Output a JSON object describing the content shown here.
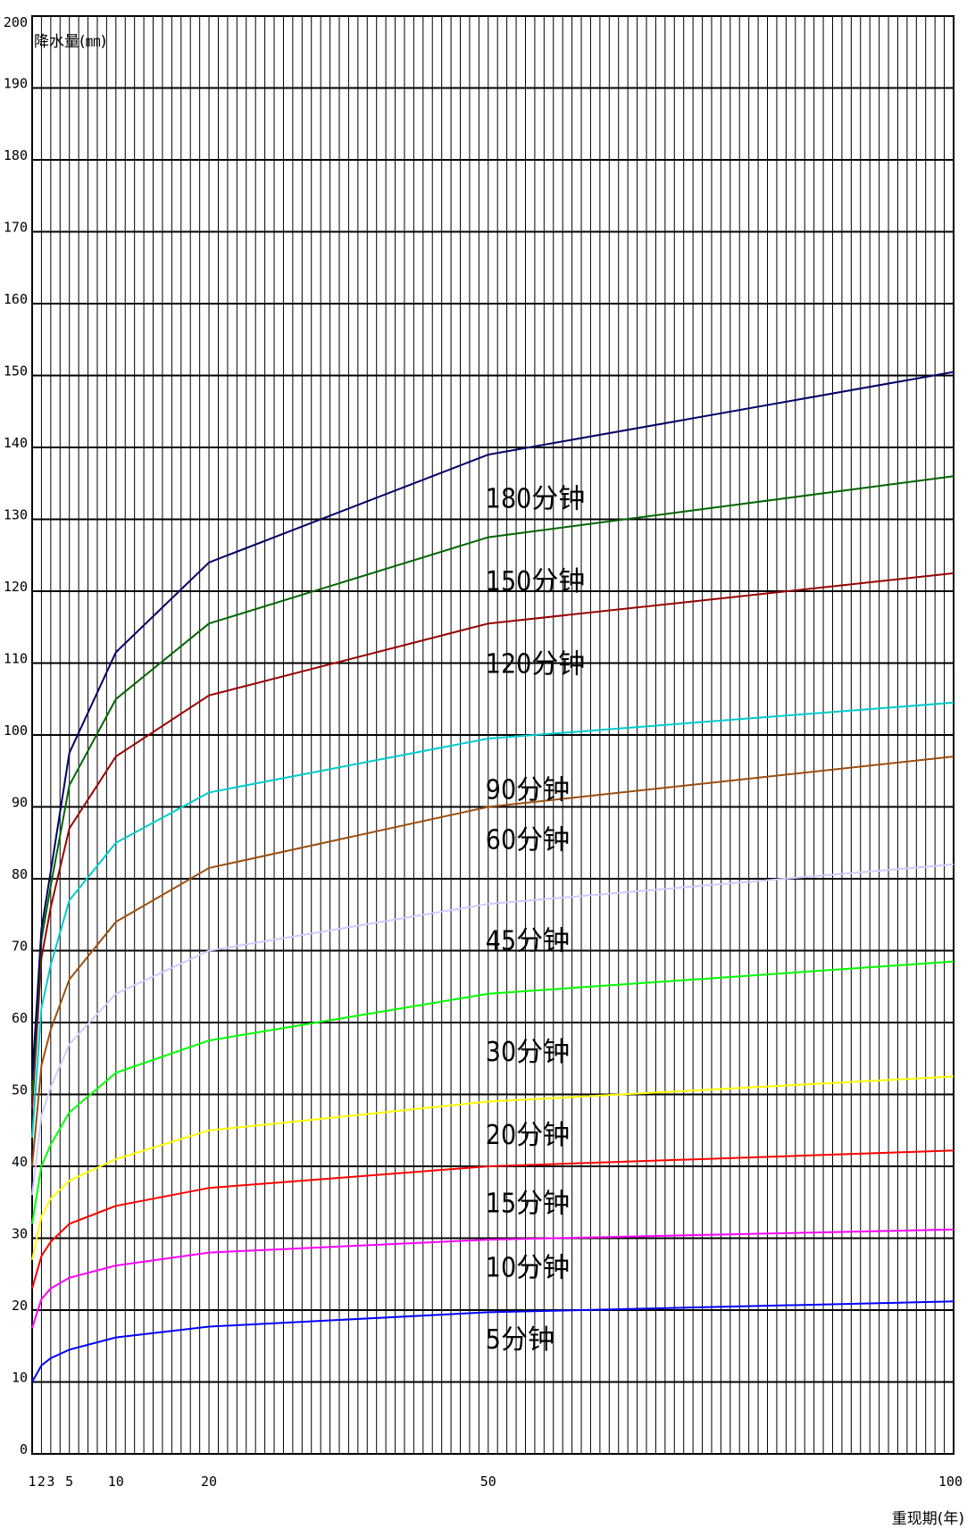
{
  "chart_data": {
    "type": "line",
    "title": "",
    "ylabel": "降水量(㎜)",
    "xlabel": "重现期(年)",
    "ylim": [
      0,
      200
    ],
    "xlim": [
      1,
      100
    ],
    "yticks": [
      "0",
      "10",
      "20",
      "30",
      "40",
      "50",
      "60",
      "70",
      "80",
      "90",
      "100",
      "110",
      "120",
      "130",
      "140",
      "150",
      "160",
      "170",
      "180",
      "190",
      "200"
    ],
    "xticks": [
      {
        "value": 1,
        "label": "1"
      },
      {
        "value": 2,
        "label": "2"
      },
      {
        "value": 3,
        "label": "3"
      },
      {
        "value": 5,
        "label": "5"
      },
      {
        "value": 10,
        "label": "10"
      },
      {
        "value": 20,
        "label": "20"
      },
      {
        "value": 50,
        "label": "50"
      },
      {
        "value": 100,
        "label": "100"
      }
    ],
    "grid": true,
    "x": [
      1,
      2,
      3,
      5,
      10,
      20,
      50,
      100
    ],
    "series": [
      {
        "name": "5分钟",
        "color": "#0000ff",
        "values": [
          10,
          12.3,
          13.3,
          14.5,
          16.2,
          17.7,
          19.7,
          21.2
        ]
      },
      {
        "name": "10分钟",
        "color": "#ff00ff",
        "values": [
          17.5,
          21.5,
          23.0,
          24.5,
          26.2,
          28.0,
          29.8,
          31.2
        ]
      },
      {
        "name": "15分钟",
        "color": "#ff0000",
        "values": [
          23,
          27.5,
          29.5,
          32.0,
          34.5,
          37.0,
          40.0,
          42.2
        ]
      },
      {
        "name": "20分钟",
        "color": "#ffff00",
        "values": [
          27,
          33.0,
          35.5,
          38.0,
          41.0,
          45.0,
          49.0,
          52.5
        ]
      },
      {
        "name": "30分钟",
        "color": "#00ff00",
        "values": [
          32,
          40.0,
          43.0,
          47.5,
          53.0,
          57.5,
          64.0,
          68.5
        ]
      },
      {
        "name": "45分钟",
        "color": "#ccccff",
        "values": [
          36,
          47.0,
          51.0,
          57.0,
          64.0,
          70.0,
          76.5,
          82.0
        ]
      },
      {
        "name": "60分钟",
        "color": "#9b4f0f",
        "values": [
          40,
          54.0,
          59.0,
          66.0,
          74.0,
          81.5,
          90.0,
          97.0
        ]
      },
      {
        "name": "90分钟",
        "color": "#00cccc",
        "values": [
          44,
          62.0,
          68.0,
          77.0,
          85.0,
          92.0,
          99.5,
          104.5
        ]
      },
      {
        "name": "120分钟",
        "color": "#990000",
        "values": [
          48,
          69.0,
          76.0,
          87.0,
          97.0,
          105.5,
          115.5,
          122.5
        ]
      },
      {
        "name": "150分钟",
        "color": "#006600",
        "values": [
          50,
          71.5,
          79.0,
          93.0,
          105.0,
          115.5,
          127.5,
          136.0
        ]
      },
      {
        "name": "180分钟",
        "color": "#000066",
        "values": [
          52,
          73.0,
          81.0,
          97.5,
          111.5,
          124.0,
          139.0,
          150.5
        ]
      }
    ],
    "series_label_anchor_x": 50,
    "series_label_y": [
      16,
      26,
      35,
      44.5,
      56,
      71.5,
      85.5,
      92.5,
      110,
      121.5,
      133
    ]
  }
}
